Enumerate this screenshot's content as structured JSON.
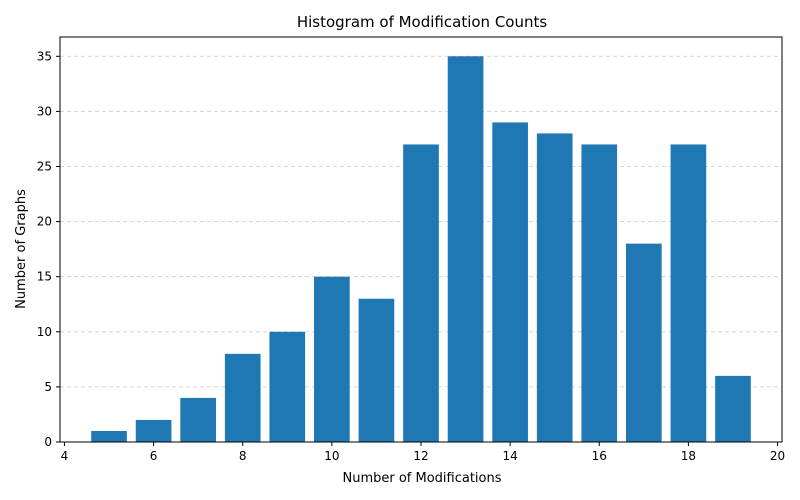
{
  "chart_data": {
    "type": "bar",
    "title": "Histogram of Modification Counts",
    "xlabel": "Number of Modifications",
    "ylabel": "Number of Graphs",
    "x": [
      5,
      6,
      7,
      8,
      9,
      10,
      11,
      12,
      13,
      14,
      15,
      16,
      17,
      18,
      19
    ],
    "values": [
      1,
      2,
      4,
      8,
      10,
      15,
      13,
      27,
      35,
      29,
      28,
      27,
      18,
      27,
      6
    ],
    "bar_width": 0.8,
    "xlim": [
      3.9,
      20.1
    ],
    "ylim": [
      0,
      36.75
    ],
    "xticks": [
      4,
      6,
      8,
      10,
      12,
      14,
      16,
      18,
      20
    ],
    "yticks": [
      0,
      5,
      10,
      15,
      20,
      25,
      30,
      35
    ],
    "grid": "y-dashed",
    "bar_color": "#1f77b4",
    "grid_color": "#cccccc"
  }
}
